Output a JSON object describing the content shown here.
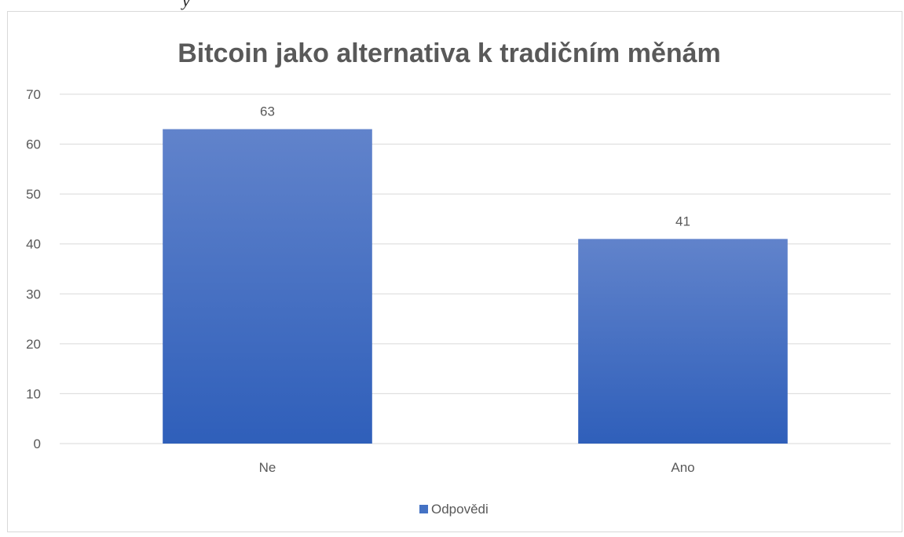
{
  "header_fragment": "y",
  "chart_data": {
    "type": "bar",
    "title": "Bitcoin jako alternativa k tradičním měnám",
    "categories": [
      "Ne",
      "Ano"
    ],
    "series": [
      {
        "name": "Odpovědi",
        "values": [
          63,
          41
        ],
        "color": "#4472c4"
      }
    ],
    "data_labels": [
      "63",
      "41"
    ],
    "yticks": [
      0,
      10,
      20,
      30,
      40,
      50,
      60,
      70
    ],
    "ylim": [
      0,
      70
    ],
    "grid": true,
    "legend_position": "bottom",
    "colors": {
      "bar_top": "#6183cb",
      "bar_bottom": "#2f5fba",
      "gridline": "#d9d9d9",
      "text": "#595959",
      "title": "#595959"
    }
  }
}
